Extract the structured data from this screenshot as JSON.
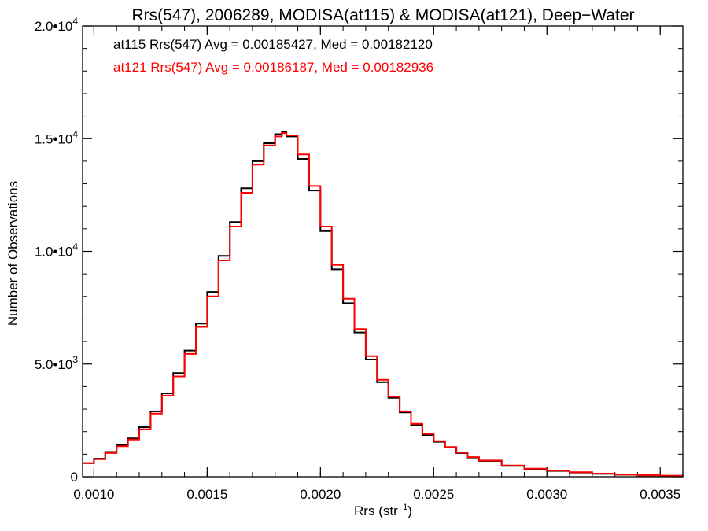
{
  "chart_data": {
    "type": "line",
    "title": "Rrs(547), 2006289, MODISA(at115) & MODISA(at121), Deep−Water",
    "xlabel": {
      "base": "Rrs (str",
      "sup": "−1",
      "tail": ")"
    },
    "ylabel": "Number of Observations",
    "xlim": [
      0.00095,
      0.0036
    ],
    "ylim": [
      0,
      20000
    ],
    "step_style": true,
    "x_ticks": [
      {
        "value": 0.001,
        "label": "0.0010"
      },
      {
        "value": 0.0015,
        "label": "0.0015"
      },
      {
        "value": 0.002,
        "label": "0.0020"
      },
      {
        "value": 0.0025,
        "label": "0.0025"
      },
      {
        "value": 0.003,
        "label": "0.0030"
      },
      {
        "value": 0.0035,
        "label": "0.0035"
      }
    ],
    "y_ticks": [
      {
        "value": 0,
        "label": "0",
        "sup": ""
      },
      {
        "value": 5000,
        "label": "5.0•10",
        "sup": "3"
      },
      {
        "value": 10000,
        "label": "1.0•10",
        "sup": "4"
      },
      {
        "value": 15000,
        "label": "1.5•10",
        "sup": "4"
      },
      {
        "value": 20000,
        "label": "2.0•10",
        "sup": "4"
      }
    ],
    "annotations": [
      {
        "text": "at115 Rrs(547) Avg = 0.00185427, Med = 0.00182120",
        "color": "#000000"
      },
      {
        "text": "at121 Rrs(547) Avg = 0.00186187, Med = 0.00182936",
        "color": "#ff0000"
      }
    ],
    "series": [
      {
        "color": "#000000",
        "x": [
          0.00095,
          0.001,
          0.00105,
          0.0011,
          0.00115,
          0.0012,
          0.00125,
          0.0013,
          0.00135,
          0.0014,
          0.00145,
          0.0015,
          0.00155,
          0.0016,
          0.00165,
          0.0017,
          0.00175,
          0.0018,
          0.00183,
          0.00185,
          0.0019,
          0.00195,
          0.002,
          0.00205,
          0.0021,
          0.00215,
          0.0022,
          0.00225,
          0.0023,
          0.00235,
          0.0024,
          0.00245,
          0.0025,
          0.00255,
          0.0026,
          0.00265,
          0.0027,
          0.0028,
          0.0029,
          0.003,
          0.0031,
          0.0032,
          0.0033,
          0.0034,
          0.0035,
          0.0036
        ],
        "y": [
          600,
          800,
          1100,
          1400,
          1700,
          2200,
          2900,
          3700,
          4600,
          5600,
          6800,
          8200,
          9800,
          11300,
          12800,
          14000,
          14800,
          15200,
          15300,
          15100,
          14100,
          12700,
          10900,
          9200,
          7700,
          6400,
          5200,
          4200,
          3500,
          2850,
          2300,
          1850,
          1550,
          1300,
          1050,
          850,
          700,
          480,
          350,
          260,
          190,
          130,
          90,
          60,
          40,
          30
        ]
      },
      {
        "color": "#ff0000",
        "x": [
          0.00095,
          0.001,
          0.00105,
          0.0011,
          0.00115,
          0.0012,
          0.00125,
          0.0013,
          0.00135,
          0.0014,
          0.00145,
          0.0015,
          0.00155,
          0.0016,
          0.00165,
          0.0017,
          0.00175,
          0.0018,
          0.00183,
          0.00185,
          0.0019,
          0.00195,
          0.002,
          0.00205,
          0.0021,
          0.00215,
          0.0022,
          0.00225,
          0.0023,
          0.00235,
          0.0024,
          0.00245,
          0.0025,
          0.00255,
          0.0026,
          0.00265,
          0.0027,
          0.0028,
          0.0029,
          0.003,
          0.0031,
          0.0032,
          0.0033,
          0.0034,
          0.0035,
          0.0036
        ],
        "y": [
          600,
          780,
          1050,
          1350,
          1650,
          2100,
          2800,
          3600,
          4450,
          5450,
          6650,
          8000,
          9600,
          11100,
          12600,
          13850,
          14700,
          15100,
          15250,
          15150,
          14300,
          12900,
          11100,
          9400,
          7900,
          6550,
          5350,
          4300,
          3550,
          2900,
          2350,
          1900,
          1580,
          1320,
          1070,
          870,
          720,
          500,
          360,
          270,
          200,
          140,
          95,
          65,
          45,
          35
        ]
      }
    ]
  }
}
